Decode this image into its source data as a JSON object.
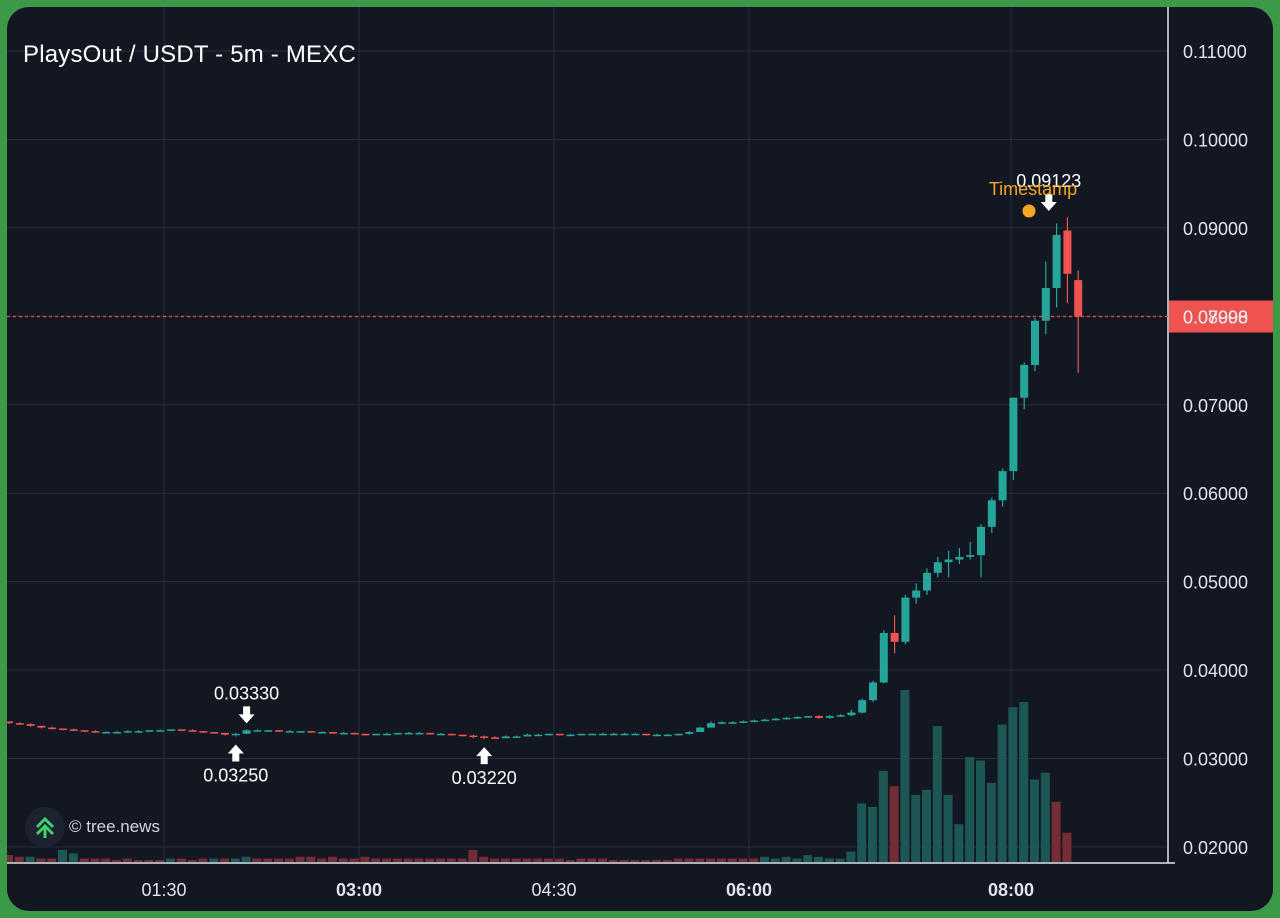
{
  "title": "PlaysOut / USDT - 5m - MEXC",
  "watermark": "© tree.news",
  "colors": {
    "background": "#131722",
    "up": "#26a69a",
    "down": "#ef5350",
    "grid": "#2a2e39",
    "current_price_line": "#ef5350",
    "timestamp_marker": "#f5a623"
  },
  "chart_data": {
    "type": "candlestick",
    "pair": "PlaysOut / USDT",
    "interval": "5m",
    "exchange": "MEXC",
    "y_tick_labels": [
      "0.11000",
      "0.10000",
      "0.09000",
      "0.08000",
      "0.07000",
      "0.06000",
      "0.05000",
      "0.04000",
      "0.03000",
      "0.02000"
    ],
    "y_ticks": [
      0.11,
      0.1,
      0.09,
      0.08,
      0.07,
      0.06,
      0.05,
      0.04,
      0.03,
      0.02
    ],
    "ylim": [
      0.0195,
      0.1145
    ],
    "x_tick_labels": [
      {
        "label": "01:30",
        "bold": false
      },
      {
        "label": "03:00",
        "bold": true
      },
      {
        "label": "04:30",
        "bold": false
      },
      {
        "label": "06:00",
        "bold": true
      },
      {
        "label": "08:00",
        "bold": true
      }
    ],
    "current_price": {
      "label": "0.07998",
      "value": 0.07998
    },
    "annotations": [
      {
        "text": "0.03330",
        "direction": "down",
        "value": 0.0333,
        "candle": 22
      },
      {
        "text": "0.03250",
        "direction": "up",
        "value": 0.0325,
        "candle": 21
      },
      {
        "text": "0.03220",
        "direction": "up",
        "value": 0.0322,
        "candle": 44
      },
      {
        "text": "0.09123",
        "direction": "down",
        "value": 0.09123,
        "candle": 96
      }
    ],
    "event_marker": {
      "label": "Timestamp",
      "candle": 95
    },
    "candles_ohlc": [
      [
        0.0342,
        0.0342,
        0.0339,
        0.034
      ],
      [
        0.034,
        0.0341,
        0.0338,
        0.0339
      ],
      [
        0.0339,
        0.034,
        0.0336,
        0.0337
      ],
      [
        0.0337,
        0.0337,
        0.0334,
        0.0335
      ],
      [
        0.0335,
        0.0336,
        0.0333,
        0.0334
      ],
      [
        0.0334,
        0.0334,
        0.0332,
        0.0333
      ],
      [
        0.0333,
        0.0334,
        0.0331,
        0.0332
      ],
      [
        0.0332,
        0.0332,
        0.033,
        0.0331
      ],
      [
        0.0331,
        0.0332,
        0.0329,
        0.033
      ],
      [
        0.033,
        0.0331,
        0.0329,
        0.033
      ],
      [
        0.033,
        0.0331,
        0.0329,
        0.033
      ],
      [
        0.033,
        0.0332,
        0.0329,
        0.0331
      ],
      [
        0.0331,
        0.0332,
        0.033,
        0.0331
      ],
      [
        0.0331,
        0.0332,
        0.033,
        0.0332
      ],
      [
        0.0332,
        0.0333,
        0.0331,
        0.0332
      ],
      [
        0.0332,
        0.0333,
        0.0331,
        0.0333
      ],
      [
        0.0333,
        0.0333,
        0.0331,
        0.0332
      ],
      [
        0.0332,
        0.0333,
        0.033,
        0.0331
      ],
      [
        0.0331,
        0.0331,
        0.0329,
        0.033
      ],
      [
        0.033,
        0.033,
        0.0328,
        0.0329
      ],
      [
        0.0329,
        0.0329,
        0.0326,
        0.0327
      ],
      [
        0.0327,
        0.0329,
        0.0325,
        0.0328
      ],
      [
        0.0328,
        0.0333,
        0.0328,
        0.0332
      ],
      [
        0.0332,
        0.0333,
        0.0331,
        0.0332
      ],
      [
        0.0332,
        0.0332,
        0.0331,
        0.0332
      ],
      [
        0.0332,
        0.0332,
        0.033,
        0.0331
      ],
      [
        0.0331,
        0.0332,
        0.033,
        0.0331
      ],
      [
        0.0331,
        0.0331,
        0.033,
        0.0331
      ],
      [
        0.0331,
        0.0331,
        0.0329,
        0.033
      ],
      [
        0.033,
        0.0331,
        0.0329,
        0.033
      ],
      [
        0.033,
        0.033,
        0.0328,
        0.0329
      ],
      [
        0.0329,
        0.033,
        0.0328,
        0.0329
      ],
      [
        0.0329,
        0.0329,
        0.0327,
        0.0328
      ],
      [
        0.0328,
        0.0328,
        0.0326,
        0.0327
      ],
      [
        0.0327,
        0.0328,
        0.0326,
        0.0328
      ],
      [
        0.0328,
        0.0329,
        0.0327,
        0.0328
      ],
      [
        0.0328,
        0.0329,
        0.0327,
        0.0329
      ],
      [
        0.0329,
        0.033,
        0.0328,
        0.0329
      ],
      [
        0.0329,
        0.033,
        0.0328,
        0.0329
      ],
      [
        0.0329,
        0.0329,
        0.0327,
        0.0328
      ],
      [
        0.0328,
        0.0329,
        0.0327,
        0.0328
      ],
      [
        0.0328,
        0.0328,
        0.0326,
        0.0327
      ],
      [
        0.0327,
        0.0327,
        0.0325,
        0.0326
      ],
      [
        0.0326,
        0.0327,
        0.0323,
        0.0325
      ],
      [
        0.0325,
        0.0326,
        0.0322,
        0.0324
      ],
      [
        0.0324,
        0.0325,
        0.0322,
        0.0323
      ],
      [
        0.0323,
        0.0326,
        0.0323,
        0.0325
      ],
      [
        0.0325,
        0.0326,
        0.0324,
        0.0325
      ],
      [
        0.0325,
        0.0328,
        0.0325,
        0.0327
      ],
      [
        0.0327,
        0.0328,
        0.0326,
        0.0327
      ],
      [
        0.0327,
        0.0328,
        0.0326,
        0.0328
      ],
      [
        0.0328,
        0.0328,
        0.0326,
        0.0327
      ],
      [
        0.0327,
        0.0328,
        0.0326,
        0.0327
      ],
      [
        0.0327,
        0.0328,
        0.0326,
        0.0328
      ],
      [
        0.0328,
        0.0328,
        0.0327,
        0.0328
      ],
      [
        0.0328,
        0.0329,
        0.0327,
        0.0328
      ],
      [
        0.0328,
        0.0329,
        0.0327,
        0.0328
      ],
      [
        0.0328,
        0.0329,
        0.0327,
        0.0328
      ],
      [
        0.0328,
        0.0329,
        0.0327,
        0.0328
      ],
      [
        0.0328,
        0.0328,
        0.0326,
        0.0327
      ],
      [
        0.0327,
        0.0328,
        0.0326,
        0.0327
      ],
      [
        0.0327,
        0.0328,
        0.0326,
        0.0327
      ],
      [
        0.0327,
        0.0328,
        0.0326,
        0.0328
      ],
      [
        0.0328,
        0.0331,
        0.0327,
        0.033
      ],
      [
        0.033,
        0.0336,
        0.033,
        0.0335
      ],
      [
        0.0335,
        0.0342,
        0.0335,
        0.034
      ],
      [
        0.034,
        0.0342,
        0.0339,
        0.0341
      ],
      [
        0.0341,
        0.0342,
        0.034,
        0.0341
      ],
      [
        0.0341,
        0.0343,
        0.034,
        0.0342
      ],
      [
        0.0342,
        0.0344,
        0.0341,
        0.0343
      ],
      [
        0.0343,
        0.0345,
        0.0342,
        0.0344
      ],
      [
        0.0344,
        0.0346,
        0.0343,
        0.0345
      ],
      [
        0.0345,
        0.0347,
        0.0344,
        0.0346
      ],
      [
        0.0346,
        0.0348,
        0.0345,
        0.0347
      ],
      [
        0.0347,
        0.0348,
        0.0346,
        0.0348
      ],
      [
        0.0348,
        0.0349,
        0.0345,
        0.0346
      ],
      [
        0.0346,
        0.0349,
        0.0345,
        0.0348
      ],
      [
        0.0348,
        0.035,
        0.0347,
        0.0349
      ],
      [
        0.0349,
        0.0355,
        0.0348,
        0.0352
      ],
      [
        0.0352,
        0.0368,
        0.0351,
        0.0366
      ],
      [
        0.0366,
        0.0388,
        0.0364,
        0.0386
      ],
      [
        0.0386,
        0.0445,
        0.0385,
        0.0442
      ],
      [
        0.0442,
        0.0462,
        0.0419,
        0.0432
      ],
      [
        0.0432,
        0.0485,
        0.0429,
        0.0482
      ],
      [
        0.0482,
        0.0498,
        0.0475,
        0.049
      ],
      [
        0.049,
        0.0515,
        0.0485,
        0.051
      ],
      [
        0.051,
        0.0528,
        0.0505,
        0.0522
      ],
      [
        0.0522,
        0.0535,
        0.0505,
        0.0525
      ],
      [
        0.0525,
        0.0538,
        0.052,
        0.0528
      ],
      [
        0.0528,
        0.0545,
        0.0525,
        0.053
      ],
      [
        0.053,
        0.0565,
        0.0505,
        0.0562
      ],
      [
        0.0562,
        0.0595,
        0.0555,
        0.0592
      ],
      [
        0.0592,
        0.0628,
        0.0585,
        0.0625
      ],
      [
        0.0625,
        0.0708,
        0.0615,
        0.0708
      ],
      [
        0.0708,
        0.0748,
        0.0695,
        0.0745
      ],
      [
        0.0745,
        0.0798,
        0.0738,
        0.0795
      ],
      [
        0.0795,
        0.0862,
        0.078,
        0.0832
      ],
      [
        0.0832,
        0.0905,
        0.081,
        0.0892
      ],
      [
        0.0897,
        0.0912,
        0.0815,
        0.0848
      ],
      [
        0.0841,
        0.0852,
        0.0736,
        0.07998
      ]
    ],
    "volume_max": 100,
    "volumes": [
      [
        4,
        0
      ],
      [
        3,
        0
      ],
      [
        3,
        1
      ],
      [
        2,
        0
      ],
      [
        2,
        0
      ],
      [
        7,
        1
      ],
      [
        5,
        1
      ],
      [
        2,
        0
      ],
      [
        2,
        0
      ],
      [
        2,
        0
      ],
      [
        1,
        0
      ],
      [
        2,
        0
      ],
      [
        1,
        0
      ],
      [
        1,
        0
      ],
      [
        1,
        0
      ],
      [
        2,
        1
      ],
      [
        2,
        0
      ],
      [
        1,
        0
      ],
      [
        2,
        0
      ],
      [
        2,
        1
      ],
      [
        2,
        0
      ],
      [
        2,
        1
      ],
      [
        3,
        1
      ],
      [
        2,
        0
      ],
      [
        2,
        0
      ],
      [
        2,
        0
      ],
      [
        2,
        0
      ],
      [
        3,
        0
      ],
      [
        3,
        0
      ],
      [
        2,
        0
      ],
      [
        3,
        0
      ],
      [
        2,
        0
      ],
      [
        2,
        0
      ],
      [
        3,
        0
      ],
      [
        2,
        0
      ],
      [
        2,
        0
      ],
      [
        2,
        0
      ],
      [
        2,
        0
      ],
      [
        2,
        0
      ],
      [
        2,
        0
      ],
      [
        2,
        0
      ],
      [
        2,
        0
      ],
      [
        2,
        0
      ],
      [
        7,
        0
      ],
      [
        3,
        0
      ],
      [
        2,
        0
      ],
      [
        2,
        0
      ],
      [
        2,
        0
      ],
      [
        2,
        0
      ],
      [
        2,
        0
      ],
      [
        2,
        0
      ],
      [
        2,
        0
      ],
      [
        1,
        0
      ],
      [
        2,
        0
      ],
      [
        2,
        0
      ],
      [
        2,
        0
      ],
      [
        1,
        0
      ],
      [
        1,
        0
      ],
      [
        1,
        0
      ],
      [
        1,
        0
      ],
      [
        1,
        0
      ],
      [
        1,
        0
      ],
      [
        2,
        0
      ],
      [
        2,
        0
      ],
      [
        2,
        0
      ],
      [
        2,
        0
      ],
      [
        2,
        0
      ],
      [
        2,
        0
      ],
      [
        2,
        0
      ],
      [
        2,
        0
      ],
      [
        3,
        1
      ],
      [
        2,
        1
      ],
      [
        3,
        1
      ],
      [
        2,
        1
      ],
      [
        4,
        1
      ],
      [
        3,
        1
      ],
      [
        2,
        1
      ],
      [
        2,
        1
      ],
      [
        6,
        1
      ],
      [
        34,
        1
      ],
      [
        32,
        1
      ],
      [
        53,
        1
      ],
      [
        44,
        0
      ],
      [
        100,
        1
      ],
      [
        39,
        1
      ],
      [
        42,
        1
      ],
      [
        79,
        1
      ],
      [
        39,
        1
      ],
      [
        22,
        1
      ],
      [
        61,
        1
      ],
      [
        59,
        1
      ],
      [
        46,
        1
      ],
      [
        80,
        1
      ],
      [
        90,
        1
      ],
      [
        93,
        1
      ],
      [
        48,
        1
      ],
      [
        52,
        1
      ],
      [
        35,
        0
      ],
      [
        17,
        0
      ]
    ]
  }
}
